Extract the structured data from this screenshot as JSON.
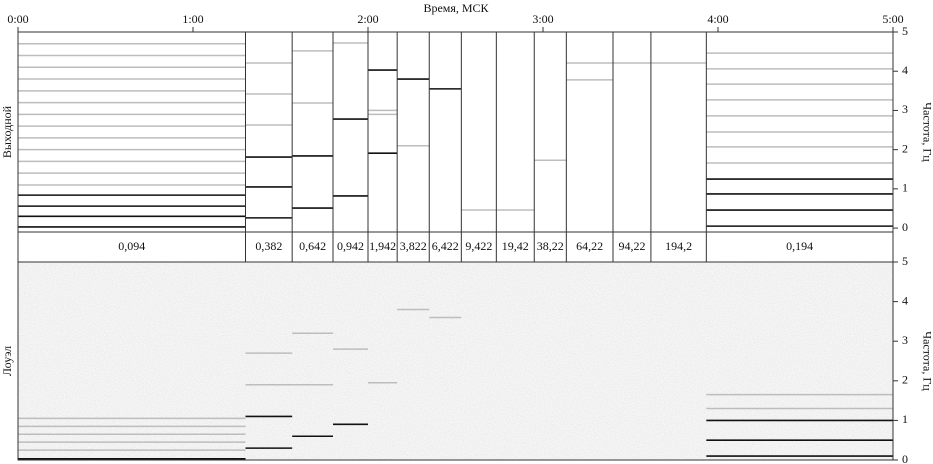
{
  "chart_data": [
    {
      "type": "spectrogram",
      "title": "Время, МСК",
      "ylabel": "Выходной",
      "y2label": "Частота, Гц",
      "xlim": [
        0,
        300
      ],
      "xticks": [
        {
          "value": 0,
          "label": "0:00"
        },
        {
          "value": 60,
          "label": "1:00"
        },
        {
          "value": 120,
          "label": "2:00"
        },
        {
          "value": 180,
          "label": "3:00"
        },
        {
          "value": 240,
          "label": "4:00"
        },
        {
          "value": 300,
          "label": "5:00"
        }
      ],
      "ylim": [
        -0.1,
        5
      ],
      "yticks": [
        0,
        1,
        2,
        3,
        4,
        5
      ],
      "bounds": [
        0,
        78,
        94,
        108,
        120,
        130,
        141,
        152,
        164,
        177,
        188,
        204,
        217,
        236,
        300
      ],
      "labels": [
        "0,094",
        "0,382",
        "0,642",
        "0,942",
        "1,942",
        "3,822",
        "6,422",
        "9,422",
        "19,42",
        "38,22",
        "64,22",
        "94,22",
        "194,2",
        "0,194"
      ],
      "lines": [
        [
          0.03,
          0.3,
          0.56,
          0.84
        ],
        [
          0.26,
          1.05,
          1.81
        ],
        [
          0.51,
          1.84
        ],
        [
          0.82,
          2.78
        ],
        [
          1.91,
          4.03
        ],
        [
          3.8
        ],
        [
          3.55
        ],
        [],
        [],
        [],
        [],
        [],
        [],
        [
          0.05,
          0.46,
          0.87,
          1.25
        ]
      ],
      "faint": [
        [
          1.1,
          1.4,
          1.7,
          2.0,
          2.3,
          2.6,
          2.9,
          3.2,
          3.5,
          3.8,
          4.1,
          4.4,
          4.7
        ],
        [
          2.63,
          3.42,
          4.21
        ],
        [
          3.19,
          4.52
        ],
        [
          4.72
        ],
        [
          2.9,
          3.0
        ],
        [
          2.1
        ],
        [],
        [
          0.46
        ],
        [
          0.46
        ],
        [
          1.73
        ],
        [
          3.78,
          4.21
        ],
        [
          4.21
        ],
        [
          4.21
        ],
        [
          1.66,
          2.07,
          2.45,
          2.86,
          3.27,
          3.67,
          4.06,
          4.46
        ]
      ]
    },
    {
      "type": "spectrogram",
      "ylabel": "Лоуэл",
      "y2label": "Частота, Гц",
      "xlim": [
        0,
        300
      ],
      "ylim": [
        0,
        5
      ],
      "yticks": [
        0,
        1,
        2,
        3,
        4,
        5
      ],
      "lines": [
        [
          0.03
        ],
        [
          0.3,
          1.1
        ],
        [
          0.6
        ],
        [
          0.9
        ],
        [],
        [],
        [],
        [],
        [],
        [],
        [],
        [],
        [],
        [
          0.1,
          0.5,
          1.0
        ]
      ],
      "faint": [
        [
          0.25,
          0.45,
          0.65,
          0.85,
          1.05
        ],
        [
          1.9,
          2.7
        ],
        [
          1.9,
          3.2
        ],
        [
          2.8
        ],
        [
          1.95
        ],
        [
          3.8
        ],
        [
          3.6
        ],
        [],
        [],
        [],
        [],
        [],
        [],
        [
          1.3,
          1.65
        ]
      ]
    }
  ]
}
